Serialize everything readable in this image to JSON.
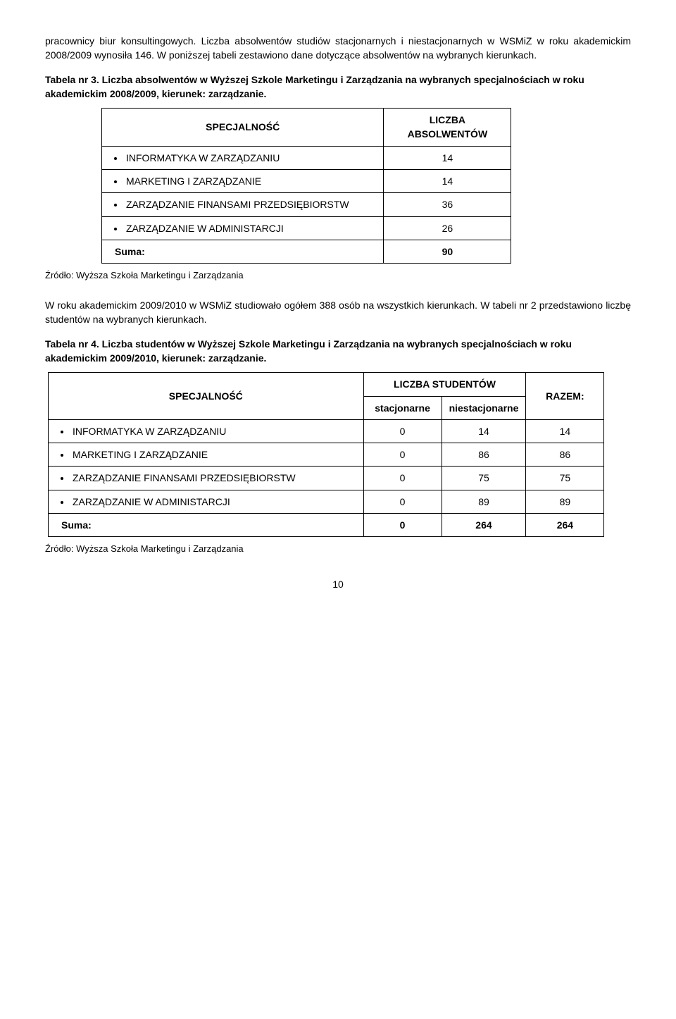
{
  "intro": {
    "p1_a": "pracownicy biur konsultingowych. Liczba absolwentów studiów stacjonarnych i niestacjonarnych w WSMiZ w roku akademickim 2008/2009 wynosiła 146. W poniższej tabeli zestawiono dane dotyczące absolwentów na wybranych kierunkach."
  },
  "table3": {
    "caption_prefix": "Tabela nr 3.",
    "caption_rest": " Liczba absolwentów w Wyższej Szkole Marketingu i Zarządzania na wybranych specjalnościach w roku akademickim 2008/2009, kierunek: zarządzanie.",
    "head_spec": "SPECJALNOŚĆ",
    "head_count": "LICZBA ABSOLWENTÓW",
    "rows": [
      {
        "label": "INFORMATYKA W ZARZĄDZANIU",
        "val": "14"
      },
      {
        "label": "MARKETING I ZARZĄDZANIE",
        "val": "14"
      },
      {
        "label": "ZARZĄDZANIE FINANSAMI PRZEDSIĘBIORSTW",
        "val": "36"
      },
      {
        "label": "ZARZĄDZANIE W ADMINISTARCJI",
        "val": "26"
      }
    ],
    "sum_label": "Suma:",
    "sum_val": "90"
  },
  "source": "Źródło: Wyższa Szkoła Marketingu i Zarządzania",
  "mid": {
    "p1": "W roku akademickim 2009/2010 w WSMiZ studiowało ogółem 388 osób na wszystkich kierunkach. W tabeli nr 2 przedstawiono liczbę studentów na wybranych kierunkach."
  },
  "table4": {
    "caption_prefix": "Tabela nr 4.",
    "caption_rest": " Liczba studentów w Wyższej Szkole Marketingu i Zarządzania na wybranych specjalnościach w roku akademickim 2009/2010, kierunek: zarządzanie.",
    "head_spec": "SPECJALNOŚĆ",
    "head_count": "LICZBA STUDENTÓW",
    "head_razem": "RAZEM:",
    "head_stac": "stacjonarne",
    "head_niestac": "niestacjonarne",
    "rows": [
      {
        "label": "INFORMATYKA W ZARZĄDZANIU",
        "s": "0",
        "n": "14",
        "r": "14"
      },
      {
        "label": "MARKETING I ZARZĄDZANIE",
        "s": "0",
        "n": "86",
        "r": "86"
      },
      {
        "label": "ZARZĄDZANIE FINANSAMI PRZEDSIĘBIORSTW",
        "s": "0",
        "n": "75",
        "r": "75"
      },
      {
        "label": "ZARZĄDZANIE W ADMINISTARCJI",
        "s": "0",
        "n": "89",
        "r": "89"
      }
    ],
    "sum_label": "Suma:",
    "sum_s": "0",
    "sum_n": "264",
    "sum_r": "264"
  },
  "page_number": "10"
}
